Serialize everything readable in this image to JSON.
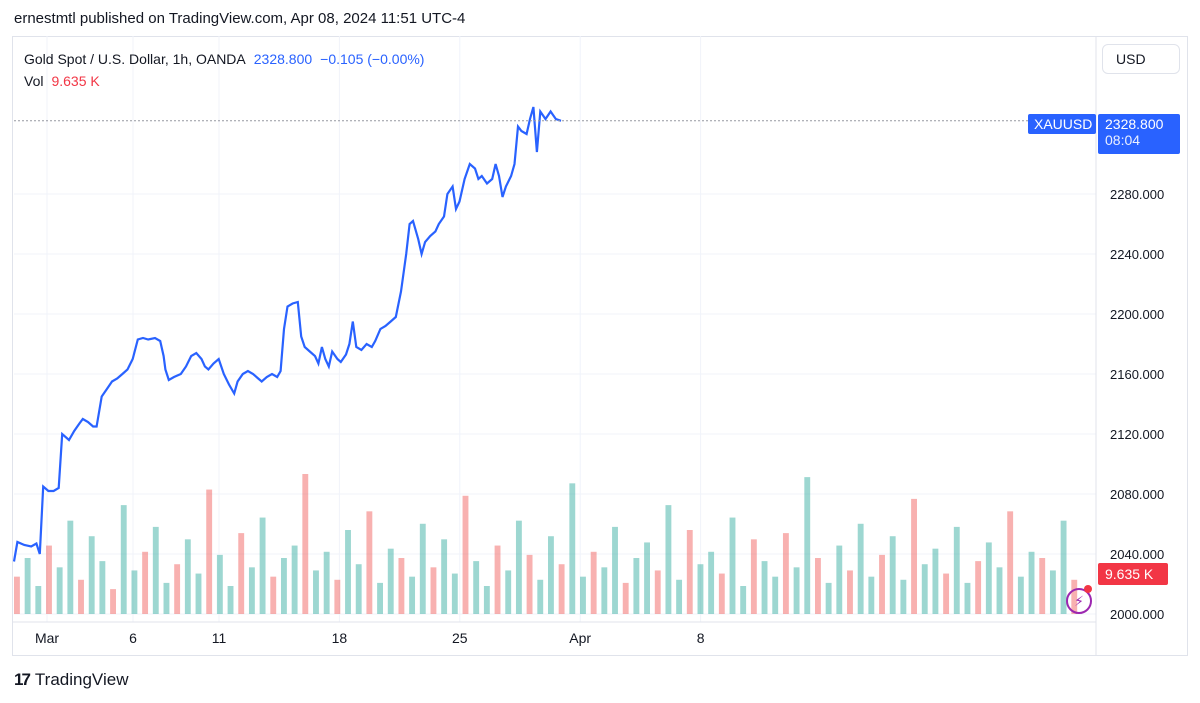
{
  "header": {
    "publish_text": "ernestmtl published on TradingView.com, Apr 08, 2024 11:51 UTC-4"
  },
  "legend": {
    "symbol_text": "Gold Spot / U.S. Dollar, 1h, OANDA",
    "last_price": "2328.800",
    "change": "−0.105 (−0.00%)",
    "vol_label": "Vol",
    "vol_value": "9.635 K"
  },
  "currency_button": "USD",
  "price_tag": {
    "ticker": "XAUUSD",
    "price": "2328.800",
    "countdown": "08:04"
  },
  "volume_tag": "9.635 K",
  "footer": {
    "logo_text": "TradingView"
  },
  "colors": {
    "line": "#2962ff",
    "vol_up": "#26a69a",
    "vol_down": "#ef5350",
    "tag_blue": "#2962ff",
    "tag_red": "#f23645"
  },
  "chart_data": {
    "type": "line",
    "title": "Gold Spot / U.S. Dollar, 1h, OANDA",
    "ylabel": "USD",
    "ylim": [
      2000,
      2360
    ],
    "y_ticks": [
      "2000.000",
      "2040.000",
      "2080.000",
      "2120.000",
      "2160.000",
      "2200.000",
      "2240.000",
      "2280.000"
    ],
    "x_ticks": [
      {
        "label": "Mar",
        "day": 1
      },
      {
        "label": "6",
        "day": 6
      },
      {
        "label": "11",
        "day": 11
      },
      {
        "label": "18",
        "day": 18
      },
      {
        "label": "25",
        "day": 25
      },
      {
        "label": "Apr",
        "day": 32
      },
      {
        "label": "8",
        "day": 39
      }
    ],
    "series": [
      {
        "name": "XAUUSD",
        "points": [
          [
            0.0,
            2035
          ],
          [
            0.2,
            2048
          ],
          [
            0.6,
            2046
          ],
          [
            1.0,
            2045
          ],
          [
            1.3,
            2047
          ],
          [
            1.5,
            2040
          ],
          [
            1.7,
            2085
          ],
          [
            2.0,
            2082
          ],
          [
            2.3,
            2082
          ],
          [
            2.6,
            2084
          ],
          [
            2.8,
            2120
          ],
          [
            3.2,
            2116
          ],
          [
            3.5,
            2122
          ],
          [
            3.8,
            2127
          ],
          [
            4.0,
            2130
          ],
          [
            4.3,
            2128
          ],
          [
            4.6,
            2125
          ],
          [
            4.8,
            2125
          ],
          [
            5.1,
            2145
          ],
          [
            5.4,
            2150
          ],
          [
            5.7,
            2155
          ],
          [
            6.0,
            2157
          ],
          [
            6.3,
            2160
          ],
          [
            6.6,
            2163
          ],
          [
            6.9,
            2170
          ],
          [
            7.2,
            2183
          ],
          [
            7.5,
            2184
          ],
          [
            7.8,
            2183
          ],
          [
            8.2,
            2184
          ],
          [
            8.5,
            2182
          ],
          [
            8.7,
            2172
          ],
          [
            8.8,
            2163
          ],
          [
            9.0,
            2156
          ],
          [
            9.3,
            2158
          ],
          [
            9.7,
            2160
          ],
          [
            10.0,
            2165
          ],
          [
            10.3,
            2172
          ],
          [
            10.6,
            2174
          ],
          [
            10.9,
            2170
          ],
          [
            11.1,
            2165
          ],
          [
            11.3,
            2163
          ],
          [
            11.6,
            2167
          ],
          [
            11.9,
            2170
          ],
          [
            12.2,
            2160
          ],
          [
            12.5,
            2153
          ],
          [
            12.8,
            2147
          ],
          [
            13.0,
            2155
          ],
          [
            13.3,
            2160
          ],
          [
            13.6,
            2162
          ],
          [
            13.9,
            2160
          ],
          [
            14.2,
            2157
          ],
          [
            14.4,
            2155
          ],
          [
            14.7,
            2158
          ],
          [
            15.0,
            2160
          ],
          [
            15.3,
            2158
          ],
          [
            15.5,
            2162
          ],
          [
            15.7,
            2190
          ],
          [
            15.9,
            2205
          ],
          [
            16.2,
            2207
          ],
          [
            16.5,
            2208
          ],
          [
            16.7,
            2185
          ],
          [
            16.9,
            2178
          ],
          [
            17.2,
            2175
          ],
          [
            17.5,
            2172
          ],
          [
            17.7,
            2167
          ],
          [
            17.9,
            2178
          ],
          [
            18.1,
            2170
          ],
          [
            18.3,
            2165
          ],
          [
            18.5,
            2175
          ],
          [
            18.8,
            2170
          ],
          [
            19.0,
            2168
          ],
          [
            19.3,
            2173
          ],
          [
            19.5,
            2180
          ],
          [
            19.7,
            2195
          ],
          [
            19.9,
            2178
          ],
          [
            20.2,
            2176
          ],
          [
            20.5,
            2180
          ],
          [
            20.8,
            2178
          ],
          [
            21.0,
            2182
          ],
          [
            21.3,
            2190
          ],
          [
            21.6,
            2192
          ],
          [
            21.9,
            2195
          ],
          [
            22.2,
            2198
          ],
          [
            22.5,
            2215
          ],
          [
            22.8,
            2240
          ],
          [
            23.0,
            2260
          ],
          [
            23.2,
            2262
          ],
          [
            23.5,
            2250
          ],
          [
            23.7,
            2240
          ],
          [
            23.9,
            2248
          ],
          [
            24.2,
            2252
          ],
          [
            24.5,
            2255
          ],
          [
            24.7,
            2260
          ],
          [
            25.0,
            2265
          ],
          [
            25.2,
            2280
          ],
          [
            25.5,
            2285
          ],
          [
            25.7,
            2270
          ],
          [
            25.9,
            2275
          ],
          [
            26.2,
            2290
          ],
          [
            26.5,
            2300
          ],
          [
            26.8,
            2297
          ],
          [
            27.0,
            2290
          ],
          [
            27.2,
            2292
          ],
          [
            27.5,
            2287
          ],
          [
            27.8,
            2290
          ],
          [
            28.0,
            2300
          ],
          [
            28.2,
            2292
          ],
          [
            28.4,
            2278
          ],
          [
            28.6,
            2285
          ],
          [
            28.9,
            2292
          ],
          [
            29.1,
            2300
          ],
          [
            29.3,
            2325
          ],
          [
            29.5,
            2322
          ],
          [
            29.8,
            2320
          ],
          [
            30.0,
            2330
          ],
          [
            30.2,
            2338
          ],
          [
            30.4,
            2308
          ],
          [
            30.6,
            2335
          ],
          [
            30.9,
            2330
          ],
          [
            31.2,
            2335
          ],
          [
            31.5,
            2330
          ],
          [
            31.8,
            2328.8
          ]
        ]
      }
    ],
    "volume": {
      "label": "Vol",
      "last_value": "9.635 K",
      "values": [
        12,
        18,
        9,
        22,
        15,
        30,
        11,
        25,
        17,
        8,
        35,
        14,
        20,
        28,
        10,
        16,
        24,
        13,
        40,
        19,
        9,
        26,
        15,
        31,
        12,
        18,
        22,
        45,
        14,
        20,
        11,
        27,
        16,
        33,
        10,
        21,
        18,
        12,
        29,
        15,
        24,
        13,
        38,
        17,
        9,
        22,
        14,
        30,
        19,
        11,
        25,
        16,
        42,
        12,
        20,
        15,
        28,
        10,
        18,
        23,
        14,
        35,
        11,
        27,
        16,
        20,
        13,
        31,
        9,
        24,
        17,
        12,
        26,
        15,
        44,
        18,
        10,
        22,
        14,
        29,
        12,
        19,
        25,
        11,
        37,
        16,
        21,
        13,
        28,
        10,
        17,
        23,
        15,
        33,
        12,
        20,
        18,
        14,
        30,
        11
      ]
    }
  }
}
